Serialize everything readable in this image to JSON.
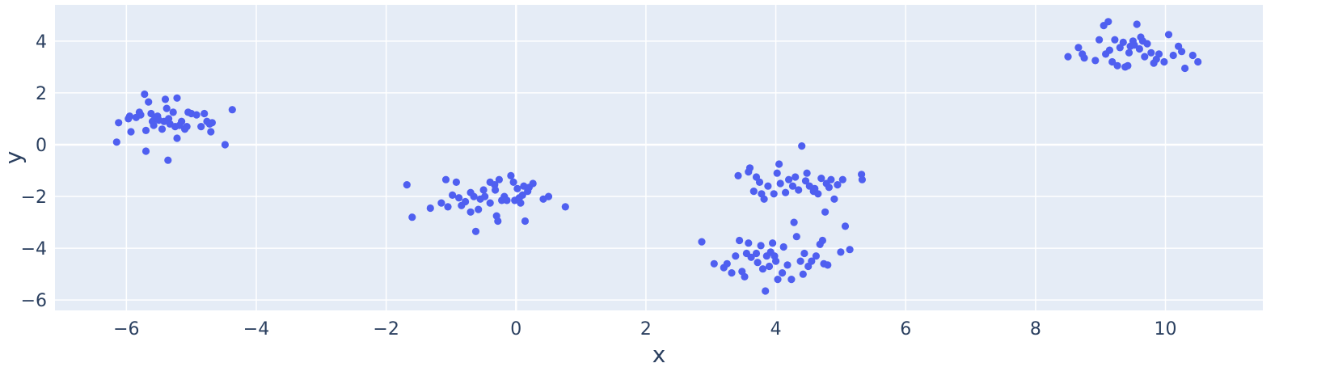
{
  "chart_data": {
    "type": "scatter",
    "title": "",
    "xlabel": "x",
    "ylabel": "y",
    "xlim": [
      -7.1,
      11.5
    ],
    "ylim": [
      -6.4,
      5.4
    ],
    "xticks": [
      -6,
      -4,
      -2,
      0,
      2,
      4,
      6,
      8,
      10
    ],
    "xtick_labels": [
      "−6",
      "−4",
      "−2",
      "0",
      "2",
      "4",
      "6",
      "8",
      "10"
    ],
    "yticks": [
      -6,
      -4,
      -2,
      0,
      2,
      4
    ],
    "ytick_labels": [
      "−6",
      "−4",
      "−2",
      "0",
      "2",
      "4"
    ],
    "grid": true,
    "legend": "none",
    "colors": {
      "marker": "#4f5ff0",
      "plot_background": "#e5ecf6",
      "grid": "#ffffff",
      "text": "#2a3f5f"
    },
    "series": [
      {
        "points": [
          [
            -6.15,
            0.1
          ],
          [
            -6.12,
            0.85
          ],
          [
            -5.97,
            1.0
          ],
          [
            -5.95,
            1.1
          ],
          [
            -5.93,
            0.5
          ],
          [
            -5.85,
            1.05
          ],
          [
            -5.8,
            1.25
          ],
          [
            -5.78,
            1.15
          ],
          [
            -5.72,
            1.95
          ],
          [
            -5.7,
            0.55
          ],
          [
            -5.7,
            -0.25
          ],
          [
            -5.66,
            1.65
          ],
          [
            -5.62,
            1.2
          ],
          [
            -5.6,
            0.9
          ],
          [
            -5.58,
            0.75
          ],
          [
            -5.56,
            1.05
          ],
          [
            -5.52,
            1.1
          ],
          [
            -5.5,
            0.95
          ],
          [
            -5.45,
            0.6
          ],
          [
            -5.42,
            0.9
          ],
          [
            -5.4,
            1.75
          ],
          [
            -5.38,
            1.4
          ],
          [
            -5.35,
            1.0
          ],
          [
            -5.33,
            0.8
          ],
          [
            -5.36,
            -0.6
          ],
          [
            -5.28,
            1.25
          ],
          [
            -5.25,
            0.7
          ],
          [
            -5.22,
            1.8
          ],
          [
            -5.22,
            0.25
          ],
          [
            -5.18,
            0.75
          ],
          [
            -5.15,
            0.9
          ],
          [
            -5.1,
            0.6
          ],
          [
            -5.07,
            0.7
          ],
          [
            -5.05,
            1.25
          ],
          [
            -5.0,
            1.2
          ],
          [
            -4.92,
            1.15
          ],
          [
            -4.85,
            0.7
          ],
          [
            -4.8,
            1.2
          ],
          [
            -4.76,
            0.9
          ],
          [
            -4.72,
            0.8
          ],
          [
            -4.7,
            0.5
          ],
          [
            -4.68,
            0.85
          ],
          [
            -4.48,
            0.0
          ],
          [
            -4.37,
            1.35
          ],
          [
            -1.68,
            -1.55
          ],
          [
            -1.6,
            -2.8
          ],
          [
            -1.32,
            -2.45
          ],
          [
            -1.15,
            -2.25
          ],
          [
            -1.08,
            -1.35
          ],
          [
            -1.05,
            -2.4
          ],
          [
            -0.98,
            -1.95
          ],
          [
            -0.92,
            -1.45
          ],
          [
            -0.88,
            -2.05
          ],
          [
            -0.84,
            -2.35
          ],
          [
            -0.78,
            -2.2
          ],
          [
            -0.7,
            -2.6
          ],
          [
            -0.7,
            -1.85
          ],
          [
            -0.65,
            -2.0
          ],
          [
            -0.62,
            -3.35
          ],
          [
            -0.58,
            -2.5
          ],
          [
            -0.55,
            -2.1
          ],
          [
            -0.5,
            -1.75
          ],
          [
            -0.48,
            -2.0
          ],
          [
            -0.4,
            -2.25
          ],
          [
            -0.4,
            -1.45
          ],
          [
            -0.33,
            -1.55
          ],
          [
            -0.32,
            -1.75
          ],
          [
            -0.3,
            -2.75
          ],
          [
            -0.28,
            -2.95
          ],
          [
            -0.26,
            -1.35
          ],
          [
            -0.22,
            -2.15
          ],
          [
            -0.18,
            -2.0
          ],
          [
            -0.14,
            -2.15
          ],
          [
            -0.08,
            -1.2
          ],
          [
            -0.04,
            -1.45
          ],
          [
            -0.02,
            -2.15
          ],
          [
            0.02,
            -1.7
          ],
          [
            0.05,
            -2.05
          ],
          [
            0.07,
            -2.25
          ],
          [
            0.1,
            -1.95
          ],
          [
            0.12,
            -1.6
          ],
          [
            0.14,
            -2.95
          ],
          [
            0.18,
            -1.8
          ],
          [
            0.2,
            -1.65
          ],
          [
            0.26,
            -1.5
          ],
          [
            0.42,
            -2.1
          ],
          [
            0.5,
            -2.0
          ],
          [
            0.76,
            -2.4
          ],
          [
            2.86,
            -3.75
          ],
          [
            3.05,
            -4.6
          ],
          [
            3.2,
            -4.75
          ],
          [
            3.25,
            -4.6
          ],
          [
            3.32,
            -4.95
          ],
          [
            3.38,
            -4.3
          ],
          [
            3.42,
            -1.2
          ],
          [
            3.44,
            -3.7
          ],
          [
            3.48,
            -4.9
          ],
          [
            3.52,
            -5.1
          ],
          [
            3.55,
            -4.2
          ],
          [
            3.58,
            -1.05
          ],
          [
            3.58,
            -3.8
          ],
          [
            3.6,
            -0.9
          ],
          [
            3.62,
            -4.35
          ],
          [
            3.66,
            -1.8
          ],
          [
            3.7,
            -1.25
          ],
          [
            3.7,
            -4.2
          ],
          [
            3.72,
            -4.55
          ],
          [
            3.75,
            -1.45
          ],
          [
            3.77,
            -3.9
          ],
          [
            3.78,
            -1.9
          ],
          [
            3.8,
            -4.8
          ],
          [
            3.82,
            -2.1
          ],
          [
            3.84,
            -5.65
          ],
          [
            3.86,
            -4.3
          ],
          [
            3.88,
            -1.6
          ],
          [
            3.9,
            -4.7
          ],
          [
            3.92,
            -4.15
          ],
          [
            3.95,
            -3.8
          ],
          [
            3.97,
            -1.9
          ],
          [
            3.98,
            -4.3
          ],
          [
            4.0,
            -4.5
          ],
          [
            4.02,
            -1.1
          ],
          [
            4.03,
            -5.2
          ],
          [
            4.05,
            -0.75
          ],
          [
            4.07,
            -1.5
          ],
          [
            4.1,
            -4.95
          ],
          [
            4.12,
            -3.95
          ],
          [
            4.15,
            -1.85
          ],
          [
            4.18,
            -4.65
          ],
          [
            4.2,
            -1.35
          ],
          [
            4.24,
            -5.2
          ],
          [
            4.26,
            -1.6
          ],
          [
            4.28,
            -3.0
          ],
          [
            4.3,
            -1.25
          ],
          [
            4.32,
            -3.55
          ],
          [
            4.35,
            -1.75
          ],
          [
            4.38,
            -4.5
          ],
          [
            4.4,
            -0.05
          ],
          [
            4.42,
            -5.0
          ],
          [
            4.44,
            -4.2
          ],
          [
            4.46,
            -1.4
          ],
          [
            4.48,
            -1.1
          ],
          [
            4.5,
            -4.7
          ],
          [
            4.52,
            -1.6
          ],
          [
            4.55,
            -4.5
          ],
          [
            4.58,
            -1.8
          ],
          [
            4.6,
            -1.7
          ],
          [
            4.62,
            -4.3
          ],
          [
            4.65,
            -1.9
          ],
          [
            4.68,
            -3.85
          ],
          [
            4.7,
            -1.3
          ],
          [
            4.72,
            -3.7
          ],
          [
            4.74,
            -4.6
          ],
          [
            4.76,
            -2.6
          ],
          [
            4.78,
            -1.5
          ],
          [
            4.8,
            -4.65
          ],
          [
            4.82,
            -1.65
          ],
          [
            4.85,
            -1.35
          ],
          [
            4.9,
            -2.1
          ],
          [
            4.95,
            -1.55
          ],
          [
            5.0,
            -4.15
          ],
          [
            5.03,
            -1.35
          ],
          [
            5.07,
            -3.15
          ],
          [
            5.14,
            -4.05
          ],
          [
            5.32,
            -1.15
          ],
          [
            5.33,
            -1.35
          ],
          [
            8.5,
            3.4
          ],
          [
            8.66,
            3.75
          ],
          [
            8.72,
            3.5
          ],
          [
            8.75,
            3.35
          ],
          [
            8.92,
            3.25
          ],
          [
            8.98,
            4.05
          ],
          [
            9.05,
            4.6
          ],
          [
            9.08,
            3.5
          ],
          [
            9.12,
            4.75
          ],
          [
            9.14,
            3.65
          ],
          [
            9.18,
            3.2
          ],
          [
            9.22,
            4.05
          ],
          [
            9.26,
            3.05
          ],
          [
            9.3,
            3.75
          ],
          [
            9.35,
            3.95
          ],
          [
            9.38,
            3.0
          ],
          [
            9.42,
            3.05
          ],
          [
            9.44,
            3.55
          ],
          [
            9.46,
            3.8
          ],
          [
            9.5,
            4.0
          ],
          [
            9.52,
            3.85
          ],
          [
            9.56,
            4.65
          ],
          [
            9.6,
            3.7
          ],
          [
            9.62,
            4.15
          ],
          [
            9.65,
            4.0
          ],
          [
            9.68,
            3.4
          ],
          [
            9.72,
            3.9
          ],
          [
            9.78,
            3.55
          ],
          [
            9.82,
            3.15
          ],
          [
            9.86,
            3.3
          ],
          [
            9.9,
            3.5
          ],
          [
            9.98,
            3.2
          ],
          [
            10.05,
            4.25
          ],
          [
            10.12,
            3.45
          ],
          [
            10.2,
            3.8
          ],
          [
            10.25,
            3.6
          ],
          [
            10.3,
            2.95
          ],
          [
            10.42,
            3.45
          ],
          [
            10.5,
            3.2
          ]
        ]
      }
    ]
  }
}
